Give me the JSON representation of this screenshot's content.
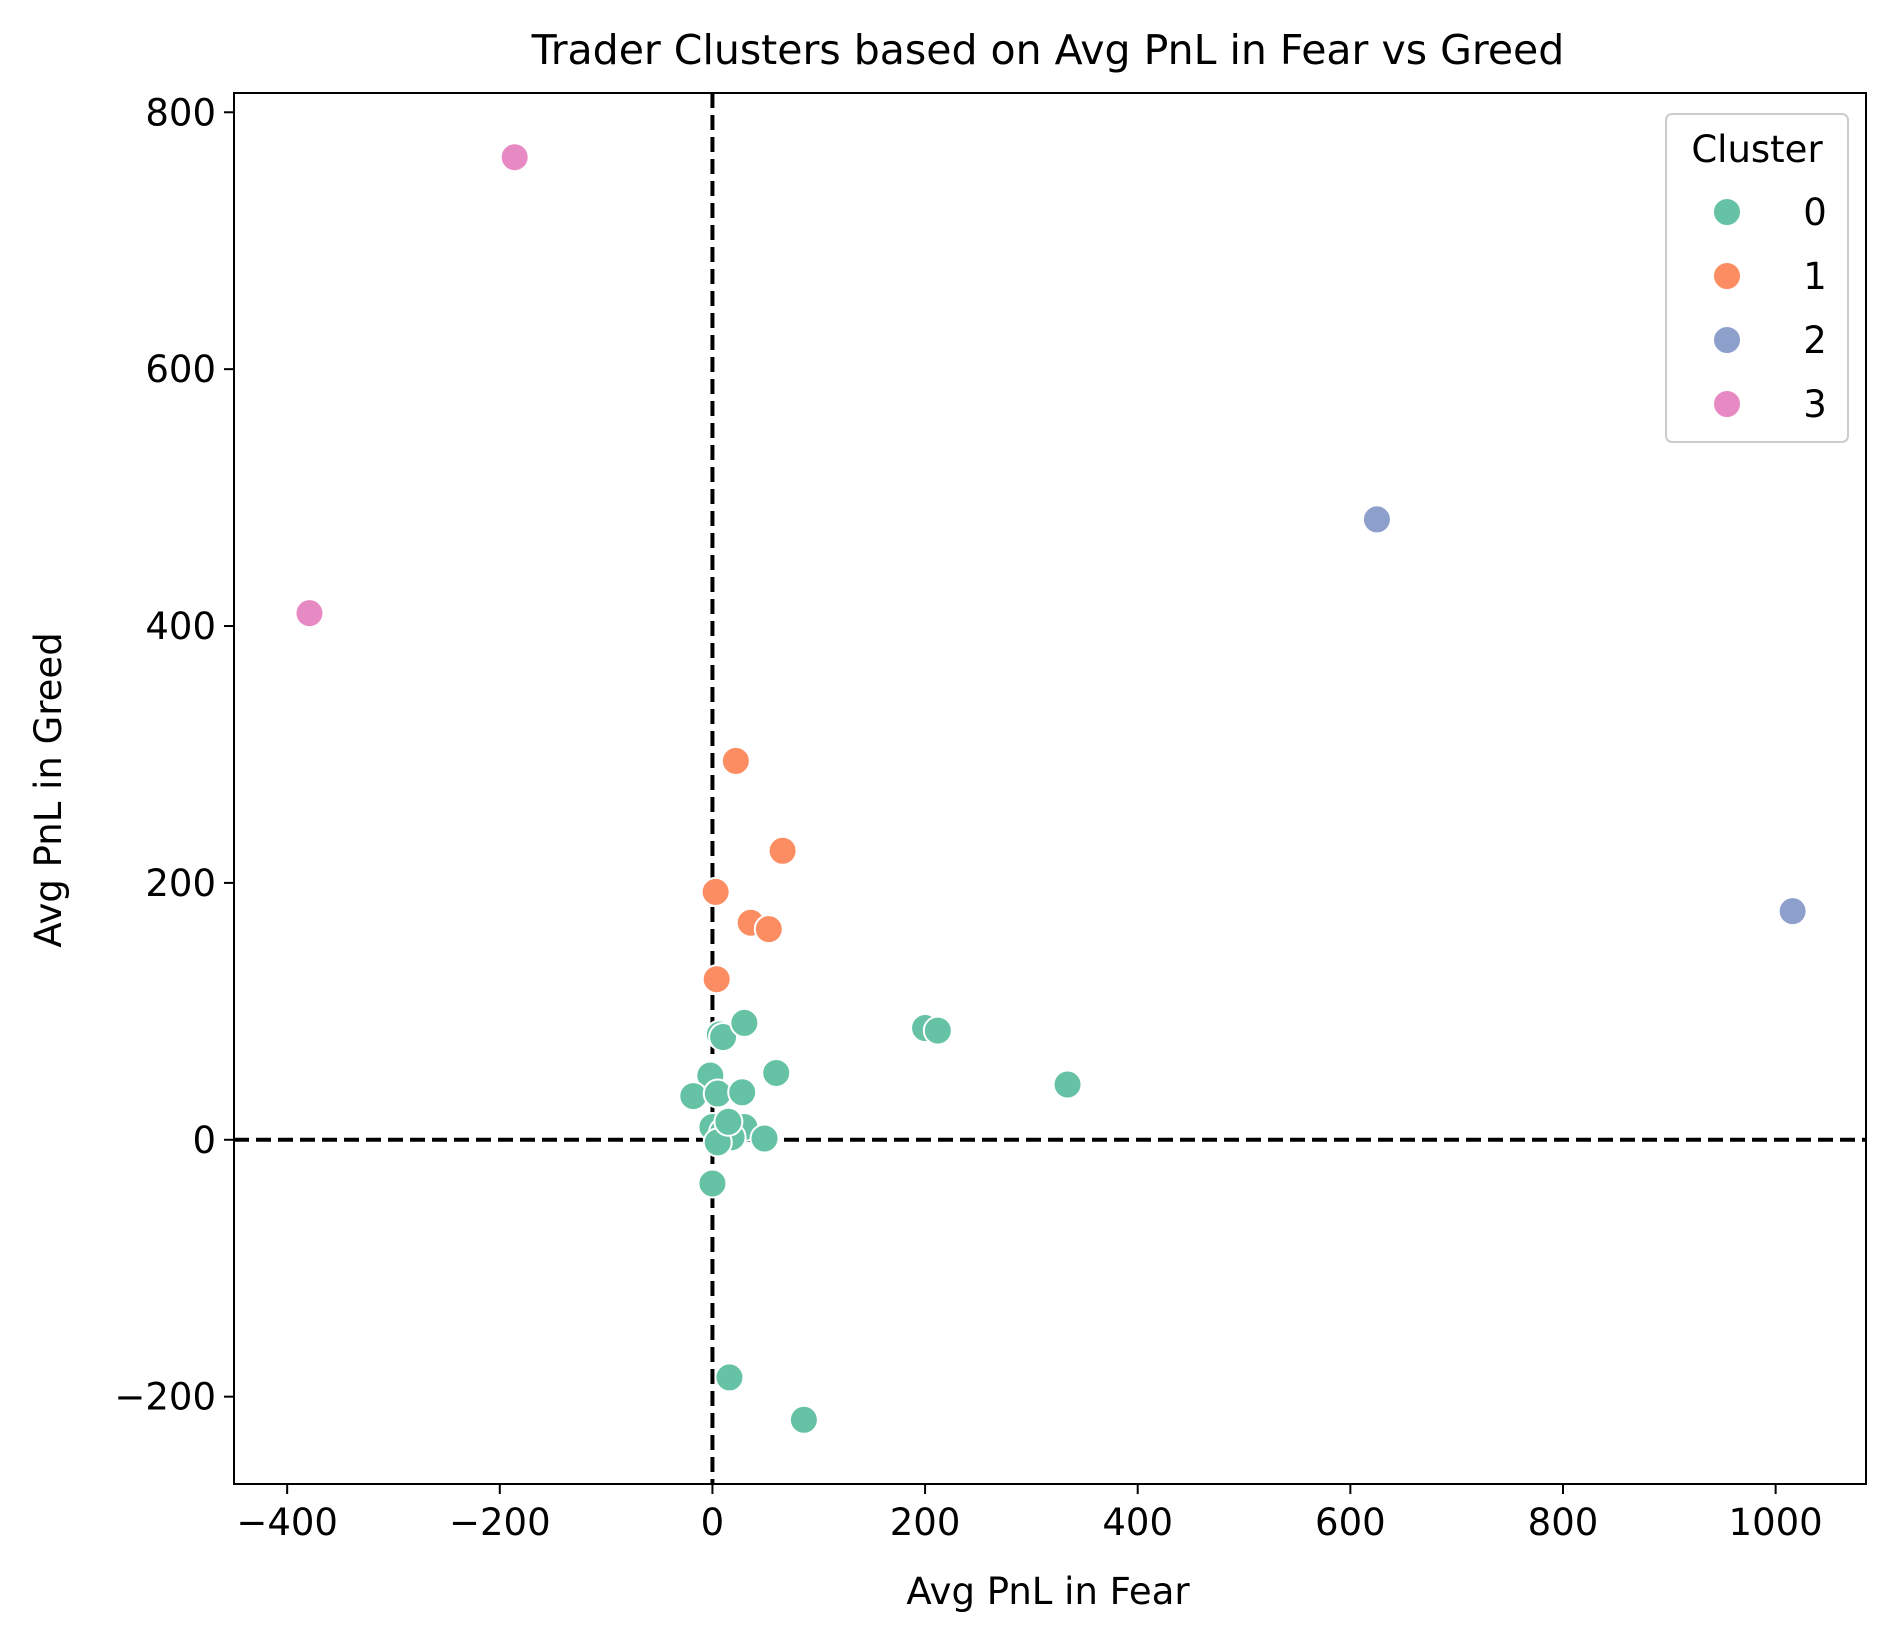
{
  "chart_data": {
    "type": "scatter",
    "title": "Trader Clusters based on Avg PnL in Fear vs Greed",
    "xlabel": "Avg PnL in Fear",
    "ylabel": "Avg PnL in Greed",
    "xlim": [
      -450,
      1085
    ],
    "ylim": [
      -268,
      815
    ],
    "xticks": [
      -400,
      -200,
      0,
      200,
      400,
      600,
      800,
      1000
    ],
    "xtick_labels": [
      "−400",
      "−200",
      "0",
      "200",
      "400",
      "600",
      "800",
      "1000"
    ],
    "yticks": [
      -200,
      0,
      200,
      400,
      600,
      800
    ],
    "ytick_labels": [
      "−200",
      "0",
      "200",
      "400",
      "600",
      "800"
    ],
    "grid": false,
    "reference_lines": [
      {
        "orientation": "vertical",
        "value": 0,
        "style": "dashed",
        "color": "#000000"
      },
      {
        "orientation": "horizontal",
        "value": 0,
        "style": "dashed",
        "color": "#000000"
      }
    ],
    "legend": {
      "title": "Cluster",
      "placement": "top-right"
    },
    "series": [
      {
        "name": "0",
        "color": "#66c2a5",
        "points": [
          [
            16,
            -185
          ],
          [
            86,
            -218
          ],
          [
            0,
            -34
          ],
          [
            -2,
            50
          ],
          [
            -18,
            34
          ],
          [
            5,
            36
          ],
          [
            28,
            37
          ],
          [
            60,
            52
          ],
          [
            7,
            82
          ],
          [
            10,
            80
          ],
          [
            30,
            91
          ],
          [
            200,
            87
          ],
          [
            212,
            85
          ],
          [
            334,
            43
          ],
          [
            0,
            10
          ],
          [
            10,
            6
          ],
          [
            30,
            10
          ],
          [
            49,
            1
          ],
          [
            18,
            2
          ],
          [
            5,
            -2
          ],
          [
            15,
            14
          ]
        ]
      },
      {
        "name": "1",
        "color": "#fc8d62",
        "points": [
          [
            22,
            295
          ],
          [
            66,
            225
          ],
          [
            3,
            193
          ],
          [
            36,
            169
          ],
          [
            53,
            164
          ],
          [
            4,
            125
          ]
        ]
      },
      {
        "name": "2",
        "color": "#8da0cb",
        "points": [
          [
            625,
            483
          ],
          [
            1016,
            178
          ]
        ]
      },
      {
        "name": "3",
        "color": "#e78ac3",
        "points": [
          [
            -186,
            765
          ],
          [
            -379,
            410
          ]
        ]
      }
    ]
  }
}
